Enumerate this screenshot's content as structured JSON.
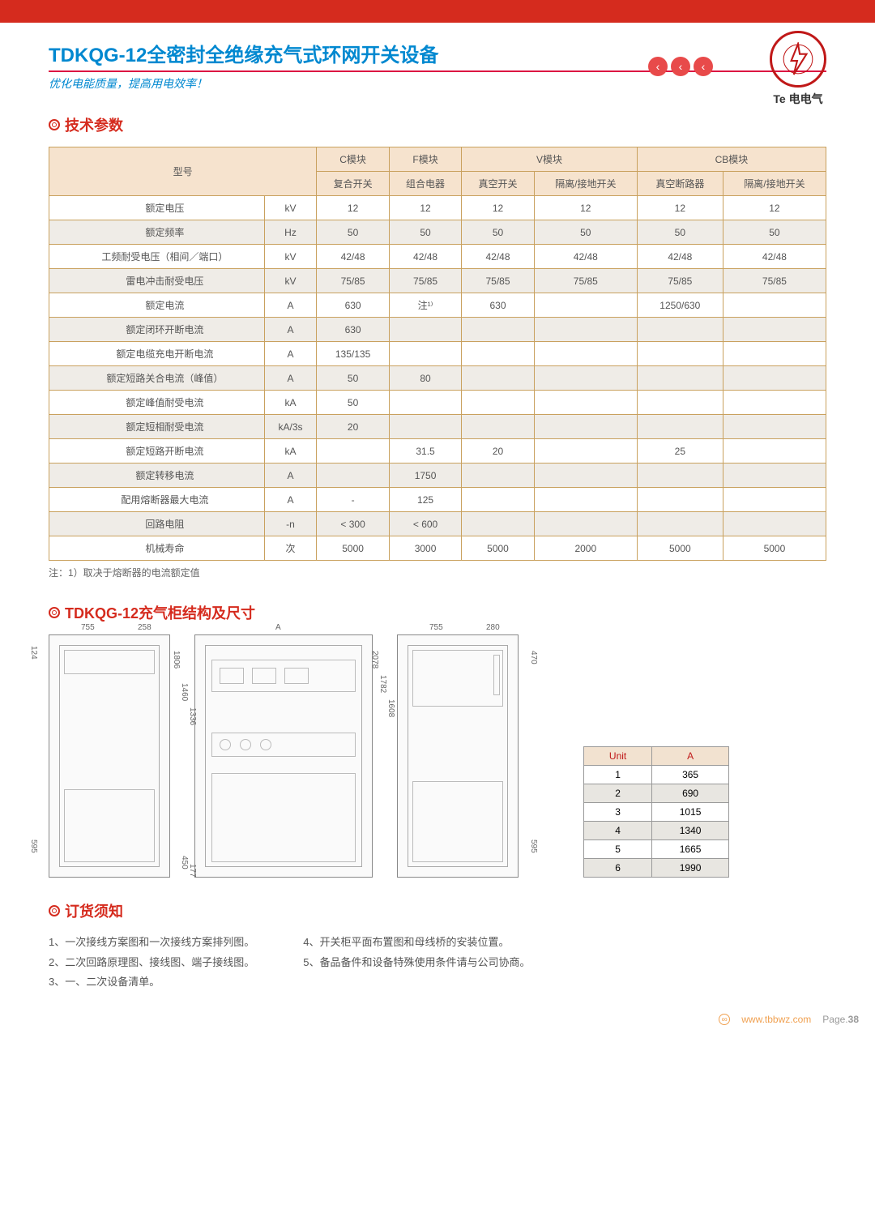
{
  "header": {
    "title": "TDKQG-12全密封全绝缘充气式环网开关设备",
    "slogan": "优化电能质量，提高用电效率！",
    "brand": "Te 电电气"
  },
  "sections": {
    "spec_title": "技术参数",
    "structure_title": "TDKQG-12充气柜结构及尺寸",
    "order_title": "订货须知"
  },
  "spec_table": {
    "model_label": "型号",
    "group_headers": [
      "C模块",
      "F模块",
      "V模块",
      "CB模块"
    ],
    "sub_headers": [
      "复合开关",
      "组合电器",
      "真空开关",
      "隔离/接地开关",
      "真空断路器",
      "隔离/接地开关"
    ],
    "rows": [
      {
        "p": "额定电压",
        "u": "kV",
        "v": [
          "12",
          "12",
          "12",
          "12",
          "12",
          "12"
        ]
      },
      {
        "p": "额定频率",
        "u": "Hz",
        "v": [
          "50",
          "50",
          "50",
          "50",
          "50",
          "50"
        ]
      },
      {
        "p": "工频耐受电压（相间／端口）",
        "u": "kV",
        "v": [
          "42/48",
          "42/48",
          "42/48",
          "42/48",
          "42/48",
          "42/48"
        ]
      },
      {
        "p": "雷电冲击耐受电压",
        "u": "kV",
        "v": [
          "75/85",
          "75/85",
          "75/85",
          "75/85",
          "75/85",
          "75/85"
        ]
      },
      {
        "p": "额定电流",
        "u": "A",
        "v": [
          "630",
          "注¹⁾",
          "630",
          "",
          "1250/630",
          ""
        ]
      },
      {
        "p": "额定闭环开断电流",
        "u": "A",
        "v": [
          "630",
          "",
          "",
          "",
          "",
          ""
        ]
      },
      {
        "p": "额定电缆充电开断电流",
        "u": "A",
        "v": [
          "135/135",
          "",
          "",
          "",
          "",
          ""
        ]
      },
      {
        "p": "额定短路关合电流（峰值）",
        "u": "A",
        "v": [
          "50",
          "80",
          "",
          "",
          "",
          ""
        ]
      },
      {
        "p": "额定峰值耐受电流",
        "u": "kA",
        "v": [
          "50",
          "",
          "",
          "",
          "",
          ""
        ]
      },
      {
        "p": "额定短相耐受电流",
        "u": "kA/3s",
        "v": [
          "20",
          "",
          "",
          "",
          "",
          ""
        ]
      },
      {
        "p": "额定短路开断电流",
        "u": "kA",
        "v": [
          "",
          "31.5",
          "20",
          "",
          "25",
          ""
        ]
      },
      {
        "p": "额定转移电流",
        "u": "A",
        "v": [
          "",
          "1750",
          "",
          "",
          "",
          ""
        ]
      },
      {
        "p": "配用熔断器最大电流",
        "u": "A",
        "v": [
          "-",
          "125",
          "",
          "",
          "",
          ""
        ]
      },
      {
        "p": "回路电阻",
        "u": "-n",
        "v": [
          "< 300",
          "< 600",
          "",
          "",
          "",
          ""
        ]
      },
      {
        "p": "机械寿命",
        "u": "次",
        "v": [
          "5000",
          "3000",
          "5000",
          "2000",
          "5000",
          "5000"
        ]
      }
    ],
    "footnote": "注：1）取决于熔断器的电流额定值"
  },
  "dimensions": {
    "d1": {
      "w": "755",
      "w2": "258",
      "h1": "124",
      "h2": "595"
    },
    "d2": {
      "label_a": "A",
      "h_list": [
        "1806",
        "1460",
        "1336",
        "450",
        "177"
      ],
      "h_right": [
        "1608",
        "1782",
        "2078"
      ]
    },
    "d3": {
      "w": "755",
      "w2": "280",
      "h1": "470",
      "h2": "595"
    }
  },
  "unit_table": {
    "headers": [
      "Unit",
      "A"
    ],
    "rows": [
      [
        "1",
        "365"
      ],
      [
        "2",
        "690"
      ],
      [
        "3",
        "1015"
      ],
      [
        "4",
        "1340"
      ],
      [
        "5",
        "1665"
      ],
      [
        "6",
        "1990"
      ]
    ]
  },
  "order": {
    "left": [
      "1、一次接线方案图和一次接线方案排列图。",
      "2、二次回路原理图、接线图、端子接线图。",
      "3、一、二次设备清单。"
    ],
    "right": [
      "4、开关柜平面布置图和母线桥的安装位置。",
      "5、备品备件和设备特殊使用条件请与公司协商。"
    ]
  },
  "footer": {
    "url": "www.tbbwz.com",
    "page_label": "Page.",
    "page_num": "38"
  }
}
